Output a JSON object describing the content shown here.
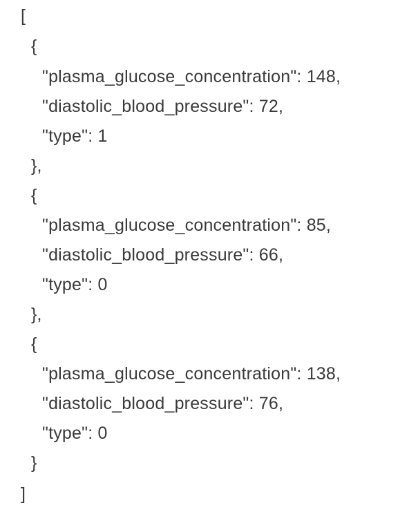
{
  "json_text": {
    "open_array": "[",
    "close_array": "]",
    "open_object": "{",
    "close_object": "}",
    "close_object_comma": "},",
    "records": [
      {
        "line_glucose": "\"plasma_glucose_concentration\": 148,",
        "line_pressure": "\"diastolic_blood_pressure\": 72,",
        "line_type": "\"type\": 1"
      },
      {
        "line_glucose": "\"plasma_glucose_concentration\": 85,",
        "line_pressure": "\"diastolic_blood_pressure\": 66,",
        "line_type": "\"type\": 0"
      },
      {
        "line_glucose": "\"plasma_glucose_concentration\": 138,",
        "line_pressure": "\"diastolic_blood_pressure\": 76,",
        "line_type": "\"type\": 0"
      }
    ]
  }
}
